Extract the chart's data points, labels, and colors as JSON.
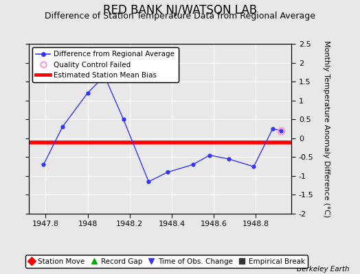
{
  "title": "RED BANK NJ/WATSON LAB",
  "subtitle": "Difference of Station Temperature Data from Regional Average",
  "ylabel": "Monthly Temperature Anomaly Difference (°C)",
  "xlabel_ticks": [
    1947.8,
    1948.0,
    1948.2,
    1948.4,
    1948.6,
    1948.8
  ],
  "xlabel_labels": [
    "1947.8",
    "1948",
    "1948.2",
    "1948.4",
    "1948.6",
    "1948.8"
  ],
  "yticks": [
    -2.0,
    -1.5,
    -1.0,
    -0.5,
    0.0,
    0.5,
    1.0,
    1.5,
    2.0,
    2.5
  ],
  "ytick_labels": [
    "-2",
    "-1.5",
    "-1",
    "-0.5",
    "0",
    "0.5",
    "1",
    "1.5",
    "2",
    "2.5"
  ],
  "ylim": [
    -2.0,
    2.5
  ],
  "xlim": [
    1947.72,
    1948.97
  ],
  "x_data": [
    1947.79,
    1947.88,
    1948.0,
    1948.08,
    1948.17,
    1948.29,
    1948.38,
    1948.5,
    1948.58,
    1948.67,
    1948.79,
    1948.88,
    1948.92
  ],
  "y_data": [
    -0.7,
    0.3,
    1.2,
    1.65,
    0.5,
    -1.15,
    -0.9,
    -0.7,
    -0.45,
    -0.55,
    -0.75,
    0.25,
    0.2
  ],
  "qc_failed_x": [
    1948.92
  ],
  "qc_failed_y": [
    0.2
  ],
  "bias_y": -0.12,
  "line_color": "#3333FF",
  "bias_color": "#FF0000",
  "qc_color": "#FF99CC",
  "plot_bg_color": "#E8E8E8",
  "fig_bg_color": "#E8E8E8",
  "grid_color": "#FFFFFF",
  "watermark": "Berkeley Earth",
  "legend_top": [
    {
      "label": "Difference from Regional Average",
      "type": "line",
      "color": "#3333FF",
      "marker": "o"
    },
    {
      "label": "Quality Control Failed",
      "type": "marker",
      "color": "#FF99CC",
      "marker": "o"
    },
    {
      "label": "Estimated Station Mean Bias",
      "type": "line",
      "color": "#FF0000"
    }
  ],
  "legend_bottom": [
    {
      "label": "Station Move",
      "marker": "D",
      "color": "#FF0000"
    },
    {
      "label": "Record Gap",
      "marker": "^",
      "color": "#00AA00"
    },
    {
      "label": "Time of Obs. Change",
      "marker": "v",
      "color": "#3333FF"
    },
    {
      "label": "Empirical Break",
      "marker": "s",
      "color": "#333333"
    }
  ],
  "title_fontsize": 12,
  "subtitle_fontsize": 9,
  "tick_fontsize": 8,
  "ylabel_fontsize": 8,
  "legend_fontsize": 7.5
}
